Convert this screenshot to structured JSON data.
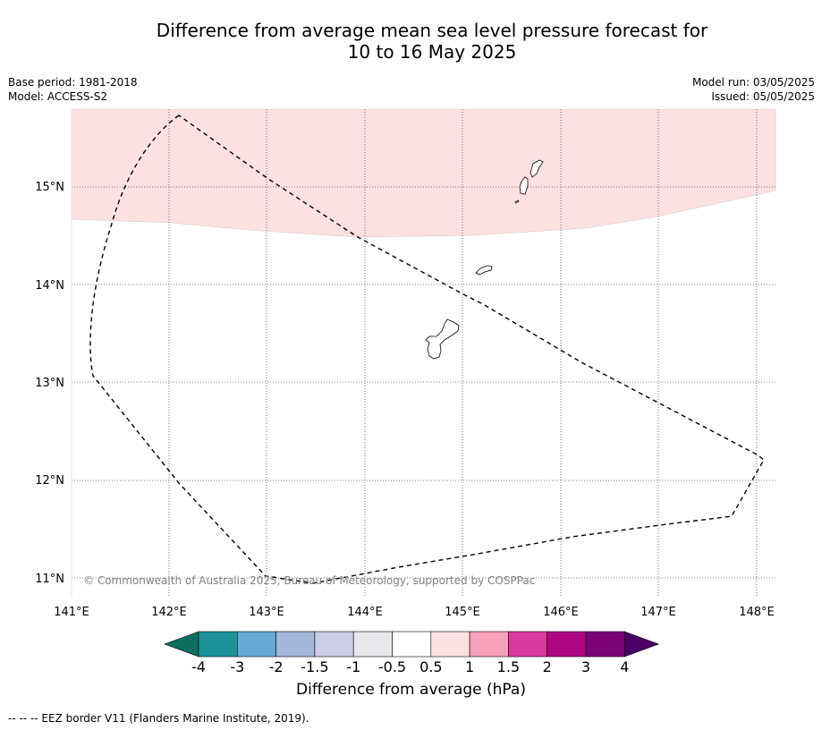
{
  "title_line1": "Difference from average mean sea level pressure forecast for",
  "title_line2": "10 to 16 May 2025",
  "base_period": "Base period: 1981-2018",
  "model": "Model: ACCESS-S2",
  "model_run": "Model run: 03/05/2025",
  "issued": "Issued: 05/05/2025",
  "copyright": "© Commonwealth of Australia 2025, Bureau of Meteorology, supported by COSPPac",
  "lon_labels": [
    "141°E",
    "142°E",
    "143°E",
    "144°E",
    "145°E",
    "146°E",
    "147°E",
    "148°E"
  ],
  "lat_labels": [
    "15°N",
    "14°N",
    "13°N",
    "12°N",
    "11°N"
  ],
  "colorbar": {
    "label": "Difference from average (hPa)",
    "ticks": [
      "-4",
      "-3",
      "-2",
      "-1.5",
      "-1",
      "-0.5",
      "0.5",
      "1",
      "1.5",
      "2",
      "3",
      "4"
    ],
    "colors": [
      "#0f6e62",
      "#1b9396",
      "#64aad4",
      "#a3b8da",
      "#cccde6",
      "#e9e7ee",
      "#ffffff",
      "#fde1e0",
      "#f7a1bb",
      "#da3a9b",
      "#ae0583",
      "#7b0177",
      "#4b0067"
    ]
  },
  "anomaly_region": {
    "category": "0.5 to 1",
    "color": "#fde1e0"
  },
  "footnote": "--  --  -- EEZ border V11 (Flanders Marine Institute, 2019)."
}
